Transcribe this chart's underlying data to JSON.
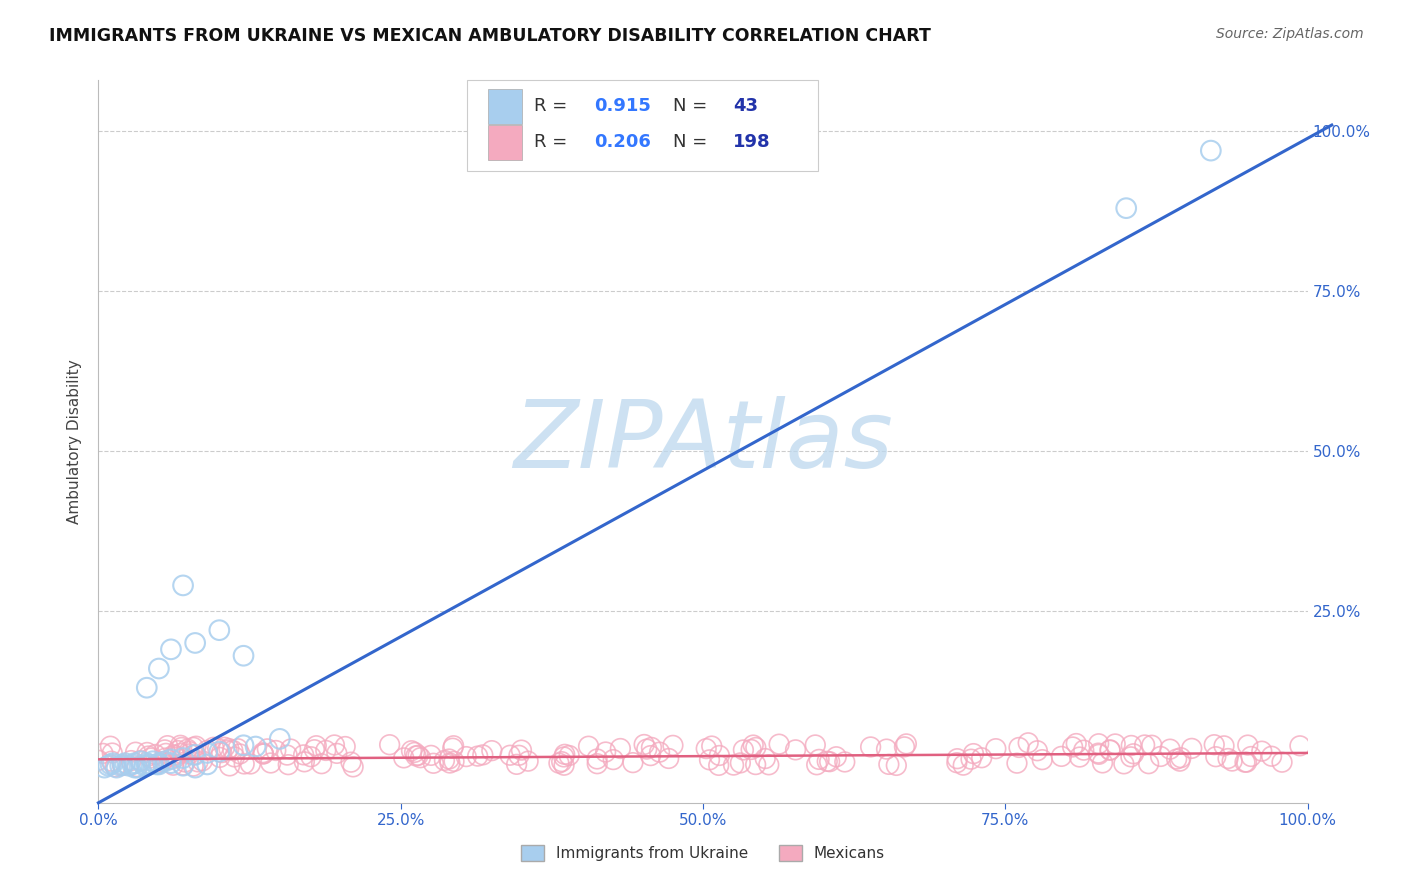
{
  "title": "IMMIGRANTS FROM UKRAINE VS MEXICAN AMBULATORY DISABILITY CORRELATION CHART",
  "source": "Source: ZipAtlas.com",
  "ylabel": "Ambulatory Disability",
  "watermark": "ZIPAtlas",
  "ukraine_R": 0.915,
  "ukraine_N": 43,
  "mexican_R": 0.206,
  "mexican_N": 198,
  "ukraine_color": "#A8CEEE",
  "ukraine_line_color": "#3366CC",
  "mexican_color": "#F4AABF",
  "mexican_line_color": "#E06080",
  "background_color": "#FFFFFF",
  "grid_color": "#CCCCCC",
  "title_color": "#111111",
  "legend_R_color": "#3377FF",
  "legend_N_color": "#2233AA",
  "tick_color": "#3366CC",
  "ylabel_color": "#444444"
}
